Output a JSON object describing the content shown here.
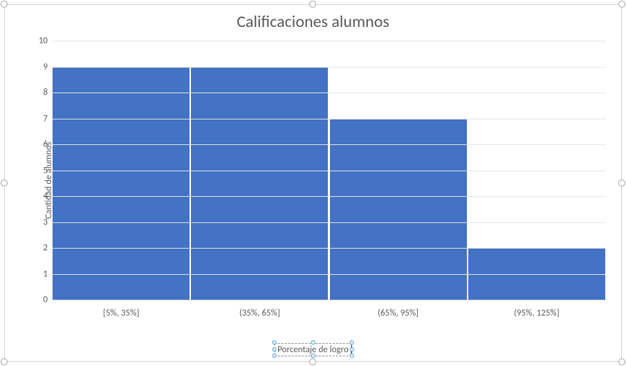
{
  "chart": {
    "type": "bar",
    "title": "Calificaciones alumnos",
    "title_fontsize": 24,
    "title_color": "#595959",
    "x_axis_title": "Porcentaje de logro",
    "y_axis_title": "Cantidad de alumnos",
    "axis_title_fontsize": 13,
    "axis_title_color": "#595959",
    "categories": [
      "[5%, 35%]",
      "(35%, 65%]",
      "(65%, 95%]",
      "(95%, 125%]"
    ],
    "values": [
      9,
      9,
      7,
      2
    ],
    "bar_colors": [
      "#4472c4",
      "#4472c4",
      "#4472c4",
      "#4472c4"
    ],
    "ylim": [
      0,
      10
    ],
    "ytick_step": 1,
    "tick_labels": [
      "0",
      "1",
      "2",
      "3",
      "4",
      "5",
      "6",
      "7",
      "8",
      "9",
      "10"
    ],
    "tick_fontsize": 13,
    "tick_color": "#595959",
    "background_color": "#ffffff",
    "grid_color": "#e6e6e6",
    "axis_line_color": "#d9d9d9",
    "bar_gap_ratio": 0.01,
    "x_axis_title_editing": true
  },
  "selection": {
    "chart_selected": true,
    "handle_color": "#a0a0a0",
    "edit_handle_color": "#3a8dde"
  }
}
